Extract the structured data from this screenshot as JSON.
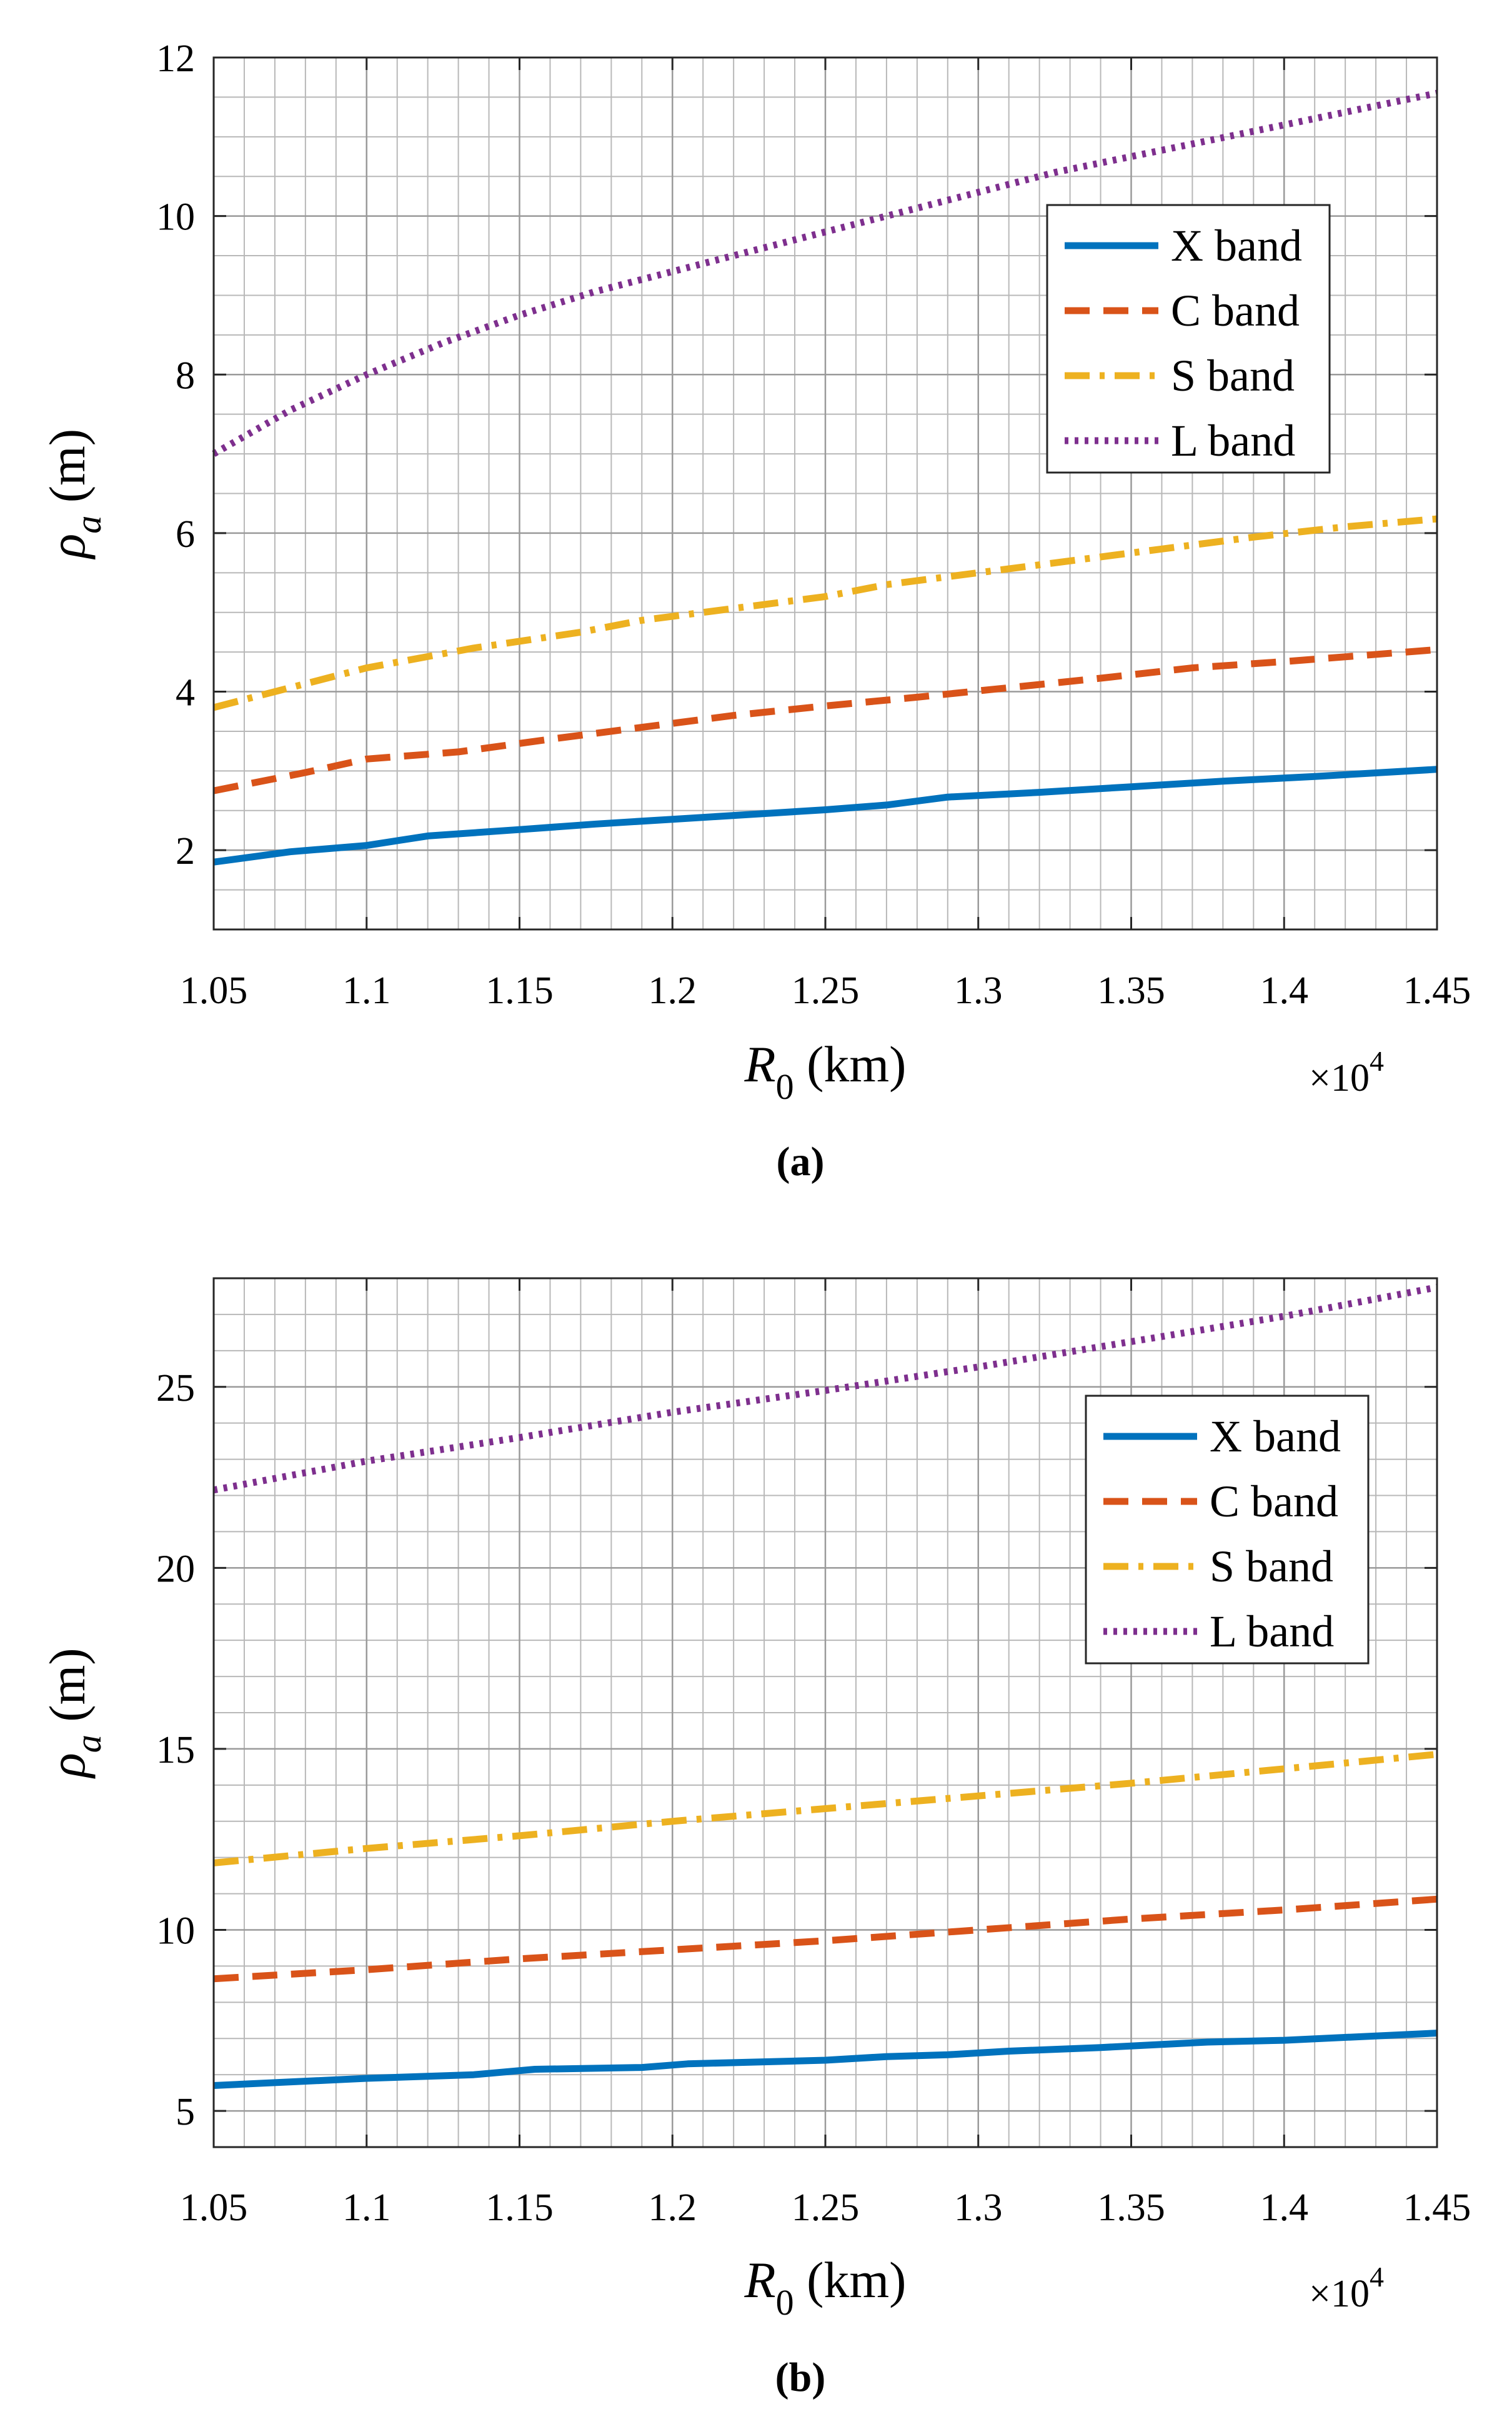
{
  "chart_data": [
    {
      "type": "line",
      "panel": "(a)",
      "caption": "(a)",
      "xlabel": "R0 (km)",
      "xlabel_main": "R",
      "xlabel_sub": "0",
      "xlabel_unit": " (km)",
      "ylabel": "ρa (m)",
      "ylabel_main": "ρ",
      "ylabel_sub": "a",
      "ylabel_unit": " (m)",
      "x_multiplier": "×10",
      "x_multiplier_exp": "4",
      "xlim": [
        1.05,
        1.45
      ],
      "ylim": [
        1,
        12
      ],
      "xticks": [
        1.05,
        1.1,
        1.15,
        1.2,
        1.25,
        1.3,
        1.35,
        1.4,
        1.45
      ],
      "xtick_labels": [
        "1.05",
        "1.1",
        "1.15",
        "1.2",
        "1.25",
        "1.3",
        "1.35",
        "1.4",
        "1.45"
      ],
      "yticks": [
        2,
        4,
        6,
        8,
        10,
        12
      ],
      "ytick_labels": [
        "2",
        "4",
        "6",
        "8",
        "10",
        "12"
      ],
      "minor_x_step": 0.01,
      "minor_y_step": 0.5,
      "grid": true,
      "legend_position": "top-right",
      "series": [
        {
          "name": "X band",
          "color": "#0072BD",
          "dash": "solid",
          "x": [
            1.05,
            1.075,
            1.1,
            1.12,
            1.15,
            1.175,
            1.2,
            1.225,
            1.25,
            1.27,
            1.29,
            1.32,
            1.35,
            1.38,
            1.41,
            1.45
          ],
          "y": [
            1.85,
            1.98,
            2.06,
            2.18,
            2.26,
            2.33,
            2.39,
            2.45,
            2.51,
            2.57,
            2.67,
            2.73,
            2.8,
            2.87,
            2.93,
            3.02
          ]
        },
        {
          "name": "C band",
          "color": "#D95319",
          "dash": "dashed",
          "x": [
            1.05,
            1.08,
            1.1,
            1.13,
            1.16,
            1.19,
            1.22,
            1.25,
            1.28,
            1.31,
            1.34,
            1.37,
            1.4,
            1.45
          ],
          "y": [
            2.75,
            2.98,
            3.15,
            3.24,
            3.4,
            3.55,
            3.7,
            3.82,
            3.93,
            4.05,
            4.17,
            4.3,
            4.38,
            4.53
          ]
        },
        {
          "name": "S band",
          "color": "#EDB120",
          "dash": "dashdot",
          "x": [
            1.05,
            1.075,
            1.1,
            1.135,
            1.17,
            1.19,
            1.22,
            1.25,
            1.27,
            1.3,
            1.33,
            1.36,
            1.39,
            1.42,
            1.45
          ],
          "y": [
            3.8,
            4.05,
            4.3,
            4.55,
            4.75,
            4.9,
            5.05,
            5.2,
            5.35,
            5.5,
            5.65,
            5.8,
            5.95,
            6.08,
            6.18
          ]
        },
        {
          "name": "L band",
          "color": "#7E2F8E",
          "dash": "dotted",
          "x": [
            1.05,
            1.075,
            1.1,
            1.125,
            1.15,
            1.175,
            1.2,
            1.225,
            1.25,
            1.275,
            1.3,
            1.325,
            1.35,
            1.375,
            1.4,
            1.425,
            1.45
          ],
          "y": [
            7.0,
            7.55,
            8.0,
            8.4,
            8.75,
            9.05,
            9.3,
            9.55,
            9.8,
            10.05,
            10.3,
            10.55,
            10.75,
            10.95,
            11.15,
            11.35,
            11.55
          ]
        }
      ]
    },
    {
      "type": "line",
      "panel": "(b)",
      "caption": "(b)",
      "xlabel": "R0 (km)",
      "xlabel_main": "R",
      "xlabel_sub": "0",
      "xlabel_unit": " (km)",
      "ylabel": "ρa (m)",
      "ylabel_main": "ρ",
      "ylabel_sub": "a",
      "ylabel_unit": " (m)",
      "x_multiplier": "×10",
      "x_multiplier_exp": "4",
      "xlim": [
        1.05,
        1.45
      ],
      "ylim": [
        4,
        28
      ],
      "xticks": [
        1.05,
        1.1,
        1.15,
        1.2,
        1.25,
        1.3,
        1.35,
        1.4,
        1.45
      ],
      "xtick_labels": [
        "1.05",
        "1.1",
        "1.15",
        "1.2",
        "1.25",
        "1.3",
        "1.35",
        "1.4",
        "1.45"
      ],
      "yticks": [
        5,
        10,
        15,
        20,
        25
      ],
      "ytick_labels": [
        "5",
        "10",
        "15",
        "20",
        "25"
      ],
      "minor_x_step": 0.01,
      "minor_y_step": 1,
      "grid": true,
      "legend_position": "top-right",
      "series": [
        {
          "name": "X band",
          "color": "#0072BD",
          "dash": "solid",
          "x": [
            1.05,
            1.1,
            1.135,
            1.155,
            1.19,
            1.205,
            1.25,
            1.27,
            1.29,
            1.31,
            1.34,
            1.375,
            1.4,
            1.45
          ],
          "y": [
            5.7,
            5.9,
            6.0,
            6.15,
            6.2,
            6.3,
            6.4,
            6.5,
            6.55,
            6.65,
            6.75,
            6.9,
            6.95,
            7.15
          ]
        },
        {
          "name": "C band",
          "color": "#D95319",
          "dash": "dashed",
          "x": [
            1.05,
            1.1,
            1.15,
            1.2,
            1.25,
            1.3,
            1.35,
            1.4,
            1.45
          ],
          "y": [
            8.65,
            8.9,
            9.2,
            9.45,
            9.7,
            10.0,
            10.3,
            10.55,
            10.85
          ]
        },
        {
          "name": "S band",
          "color": "#EDB120",
          "dash": "dashdot",
          "x": [
            1.05,
            1.1,
            1.15,
            1.2,
            1.25,
            1.3,
            1.35,
            1.4,
            1.45
          ],
          "y": [
            11.85,
            12.25,
            12.6,
            13.0,
            13.35,
            13.7,
            14.05,
            14.45,
            14.85
          ]
        },
        {
          "name": "L band",
          "color": "#7E2F8E",
          "dash": "dotted",
          "x": [
            1.05,
            1.1,
            1.15,
            1.2,
            1.25,
            1.3,
            1.35,
            1.4,
            1.45
          ],
          "y": [
            22.15,
            22.95,
            23.6,
            24.3,
            24.9,
            25.55,
            26.25,
            26.95,
            27.75
          ]
        }
      ]
    }
  ]
}
